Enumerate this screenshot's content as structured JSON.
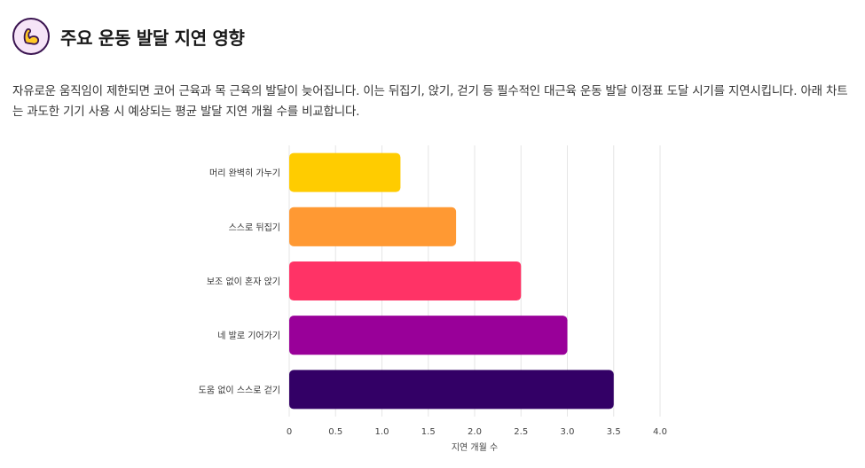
{
  "header": {
    "icon": "flexed-bicep-icon",
    "title": "주요 운동 발달 지연 영향"
  },
  "description": "자유로운 움직임이 제한되면 코어 근육과 목 근육의 발달이 늦어집니다. 이는 뒤집기, 앉기, 걷기 등 필수적인 대근육 운동 발달 이정표 도달 시기를 지연시킵니다. 아래 차트는 과도한 기기 사용 시 예상되는 평균 발달 지연 개월 수를 비교합니다.",
  "colors": {
    "icon_bg": "#f6e4f7",
    "icon_border": "#3a1450",
    "icon_fill": "#ffc926",
    "grid": "#e6e6e6"
  },
  "chart_data": {
    "type": "bar",
    "orientation": "horizontal",
    "categories": [
      "머리 완벽히 가누기",
      "스스로 뒤집기",
      "보조 없이 혼자 앉기",
      "네 발로 기어가기",
      "도움 없이 스스로 걷기"
    ],
    "values": [
      1.2,
      1.8,
      2.5,
      3.0,
      3.5
    ],
    "bar_colors": [
      "#ffcc00",
      "#ff9933",
      "#ff3366",
      "#990099",
      "#330066"
    ],
    "xlabel": "지연 개월 수",
    "ylabel": "",
    "xlim": [
      0,
      4.0
    ],
    "xticks": [
      0,
      0.5,
      1.0,
      1.5,
      2.0,
      2.5,
      3.0,
      3.5,
      4.0
    ],
    "xtick_labels": [
      "0",
      "0.5",
      "1.0",
      "1.5",
      "2.0",
      "2.5",
      "3.0",
      "3.5",
      "4.0"
    ],
    "grid": true
  }
}
